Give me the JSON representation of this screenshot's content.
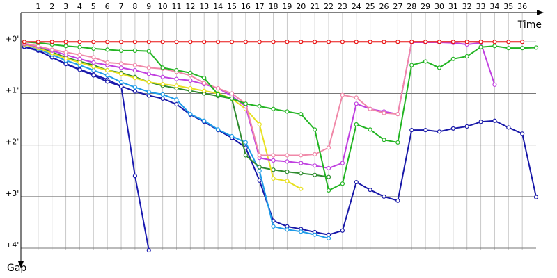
{
  "chart_data": {
    "type": "line",
    "x_label": "Time",
    "y_label": "Gap",
    "x": [
      0,
      1,
      2,
      3,
      4,
      5,
      6,
      7,
      8,
      9,
      10,
      11,
      12,
      13,
      14,
      15,
      16,
      17,
      18,
      19,
      20,
      21,
      22,
      23,
      24,
      25,
      26,
      27,
      28,
      29,
      30,
      31,
      32,
      33,
      34,
      35,
      36,
      37
    ],
    "xlim": [
      -0.25,
      37.25
    ],
    "xticks": [
      1,
      2,
      3,
      4,
      5,
      6,
      7,
      8,
      9,
      10,
      11,
      12,
      13,
      14,
      15,
      16,
      17,
      18,
      19,
      20,
      21,
      22,
      23,
      24,
      25,
      26,
      27,
      28,
      29,
      30,
      31,
      32,
      33,
      34,
      35,
      36
    ],
    "ylim": [
      -0.57,
      4.31
    ],
    "y_inverted": true,
    "yticks": [
      {
        "value": 0,
        "label": "+0'"
      },
      {
        "value": 1,
        "label": "+1'"
      },
      {
        "value": 2,
        "label": "+2'"
      },
      {
        "value": 3,
        "label": "+3'"
      },
      {
        "value": 4,
        "label": "+4'"
      }
    ],
    "grid": true,
    "series": [
      {
        "color": "#1a1ab0",
        "values": [
          0.1,
          0.17,
          0.3,
          0.42,
          0.53,
          0.63,
          0.73,
          0.86,
          2.6,
          4.04,
          null,
          null,
          null,
          null,
          null,
          null,
          null,
          null,
          null,
          null,
          null,
          null,
          null,
          null,
          null,
          null,
          null,
          null,
          null,
          null,
          null,
          null,
          null,
          null,
          null,
          null,
          null,
          null
        ]
      },
      {
        "color": "#1818a8",
        "values": [
          0.09,
          0.16,
          0.3,
          0.43,
          0.54,
          0.65,
          0.77,
          0.86,
          0.96,
          1.04,
          1.1,
          1.21,
          1.41,
          1.55,
          1.71,
          1.86,
          2.05,
          2.69,
          3.47,
          3.58,
          3.63,
          3.69,
          3.74,
          3.66,
          2.72,
          2.87,
          3.0,
          3.08,
          1.71,
          1.71,
          1.74,
          1.68,
          1.64,
          1.55,
          1.53,
          1.66,
          1.78,
          3.01
        ]
      },
      {
        "color": "#1e9be8",
        "values": [
          0.05,
          0.13,
          0.25,
          0.36,
          0.45,
          0.55,
          0.65,
          0.78,
          0.88,
          0.97,
          1.02,
          1.12,
          1.4,
          1.53,
          1.7,
          1.83,
          1.95,
          2.5,
          3.58,
          3.64,
          3.68,
          3.74,
          3.81,
          null,
          null,
          null,
          null,
          null,
          null,
          null,
          null,
          null,
          null,
          null,
          null,
          null,
          null,
          null
        ]
      },
      {
        "color": "#2e8b2e",
        "values": [
          0.05,
          0.1,
          0.2,
          0.3,
          0.38,
          0.45,
          0.55,
          0.6,
          0.68,
          0.78,
          0.85,
          0.9,
          0.95,
          1.0,
          1.05,
          1.1,
          2.2,
          2.43,
          2.48,
          2.52,
          2.55,
          2.58,
          2.62,
          null,
          null,
          null,
          null,
          null,
          null,
          null,
          null,
          null,
          null,
          null,
          null,
          null,
          null,
          null
        ]
      },
      {
        "color": "#e8e020",
        "values": [
          0.05,
          0.12,
          0.22,
          0.32,
          0.4,
          0.48,
          0.55,
          0.62,
          0.7,
          0.78,
          0.82,
          0.85,
          0.9,
          0.95,
          1.0,
          1.1,
          1.3,
          1.6,
          2.65,
          2.7,
          2.85,
          null,
          null,
          null,
          null,
          null,
          null,
          null,
          null,
          null,
          null,
          null,
          null,
          null,
          null,
          null,
          null,
          null
        ]
      },
      {
        "color": "#c040e0",
        "values": [
          0.04,
          0.09,
          0.17,
          0.25,
          0.33,
          0.4,
          0.45,
          0.5,
          0.55,
          0.62,
          0.68,
          0.72,
          0.75,
          0.82,
          0.9,
          1.05,
          1.25,
          2.25,
          2.3,
          2.32,
          2.35,
          2.4,
          2.45,
          2.35,
          1.2,
          1.3,
          1.35,
          1.4,
          0.01,
          0.01,
          0.01,
          0.02,
          0.05,
          0.02,
          0.83,
          null,
          null,
          null
        ]
      },
      {
        "color": "#f088a8",
        "values": [
          0.03,
          0.08,
          0.15,
          0.2,
          0.25,
          0.3,
          0.4,
          0.42,
          0.45,
          0.5,
          0.52,
          0.58,
          0.65,
          0.8,
          0.9,
          1.0,
          1.2,
          2.2,
          2.2,
          2.2,
          2.2,
          2.18,
          2.05,
          1.03,
          1.08,
          1.3,
          1.38,
          1.4,
          0,
          0,
          0,
          0,
          0,
          0,
          null,
          null,
          null,
          null
        ]
      },
      {
        "color": "#22b422",
        "values": [
          0,
          0.02,
          0.05,
          0.08,
          0.1,
          0.13,
          0.15,
          0.17,
          0.17,
          0.18,
          0.5,
          0.55,
          0.6,
          0.7,
          1.02,
          1.1,
          1.2,
          1.25,
          1.3,
          1.35,
          1.4,
          1.7,
          2.88,
          2.75,
          1.6,
          1.7,
          1.9,
          1.95,
          0.45,
          0.38,
          0.5,
          0.33,
          0.28,
          0.1,
          0.08,
          0.12,
          0.12,
          0.11
        ]
      },
      {
        "color": "#e81010",
        "values": [
          0,
          0,
          0,
          0,
          0,
          0,
          0,
          0,
          0,
          0,
          0,
          0,
          0,
          0,
          0,
          0,
          0,
          0,
          0,
          0,
          0,
          0,
          0,
          0,
          0,
          0,
          0,
          0,
          0,
          0,
          0,
          0,
          0,
          0,
          0,
          0,
          0,
          null
        ]
      }
    ]
  }
}
